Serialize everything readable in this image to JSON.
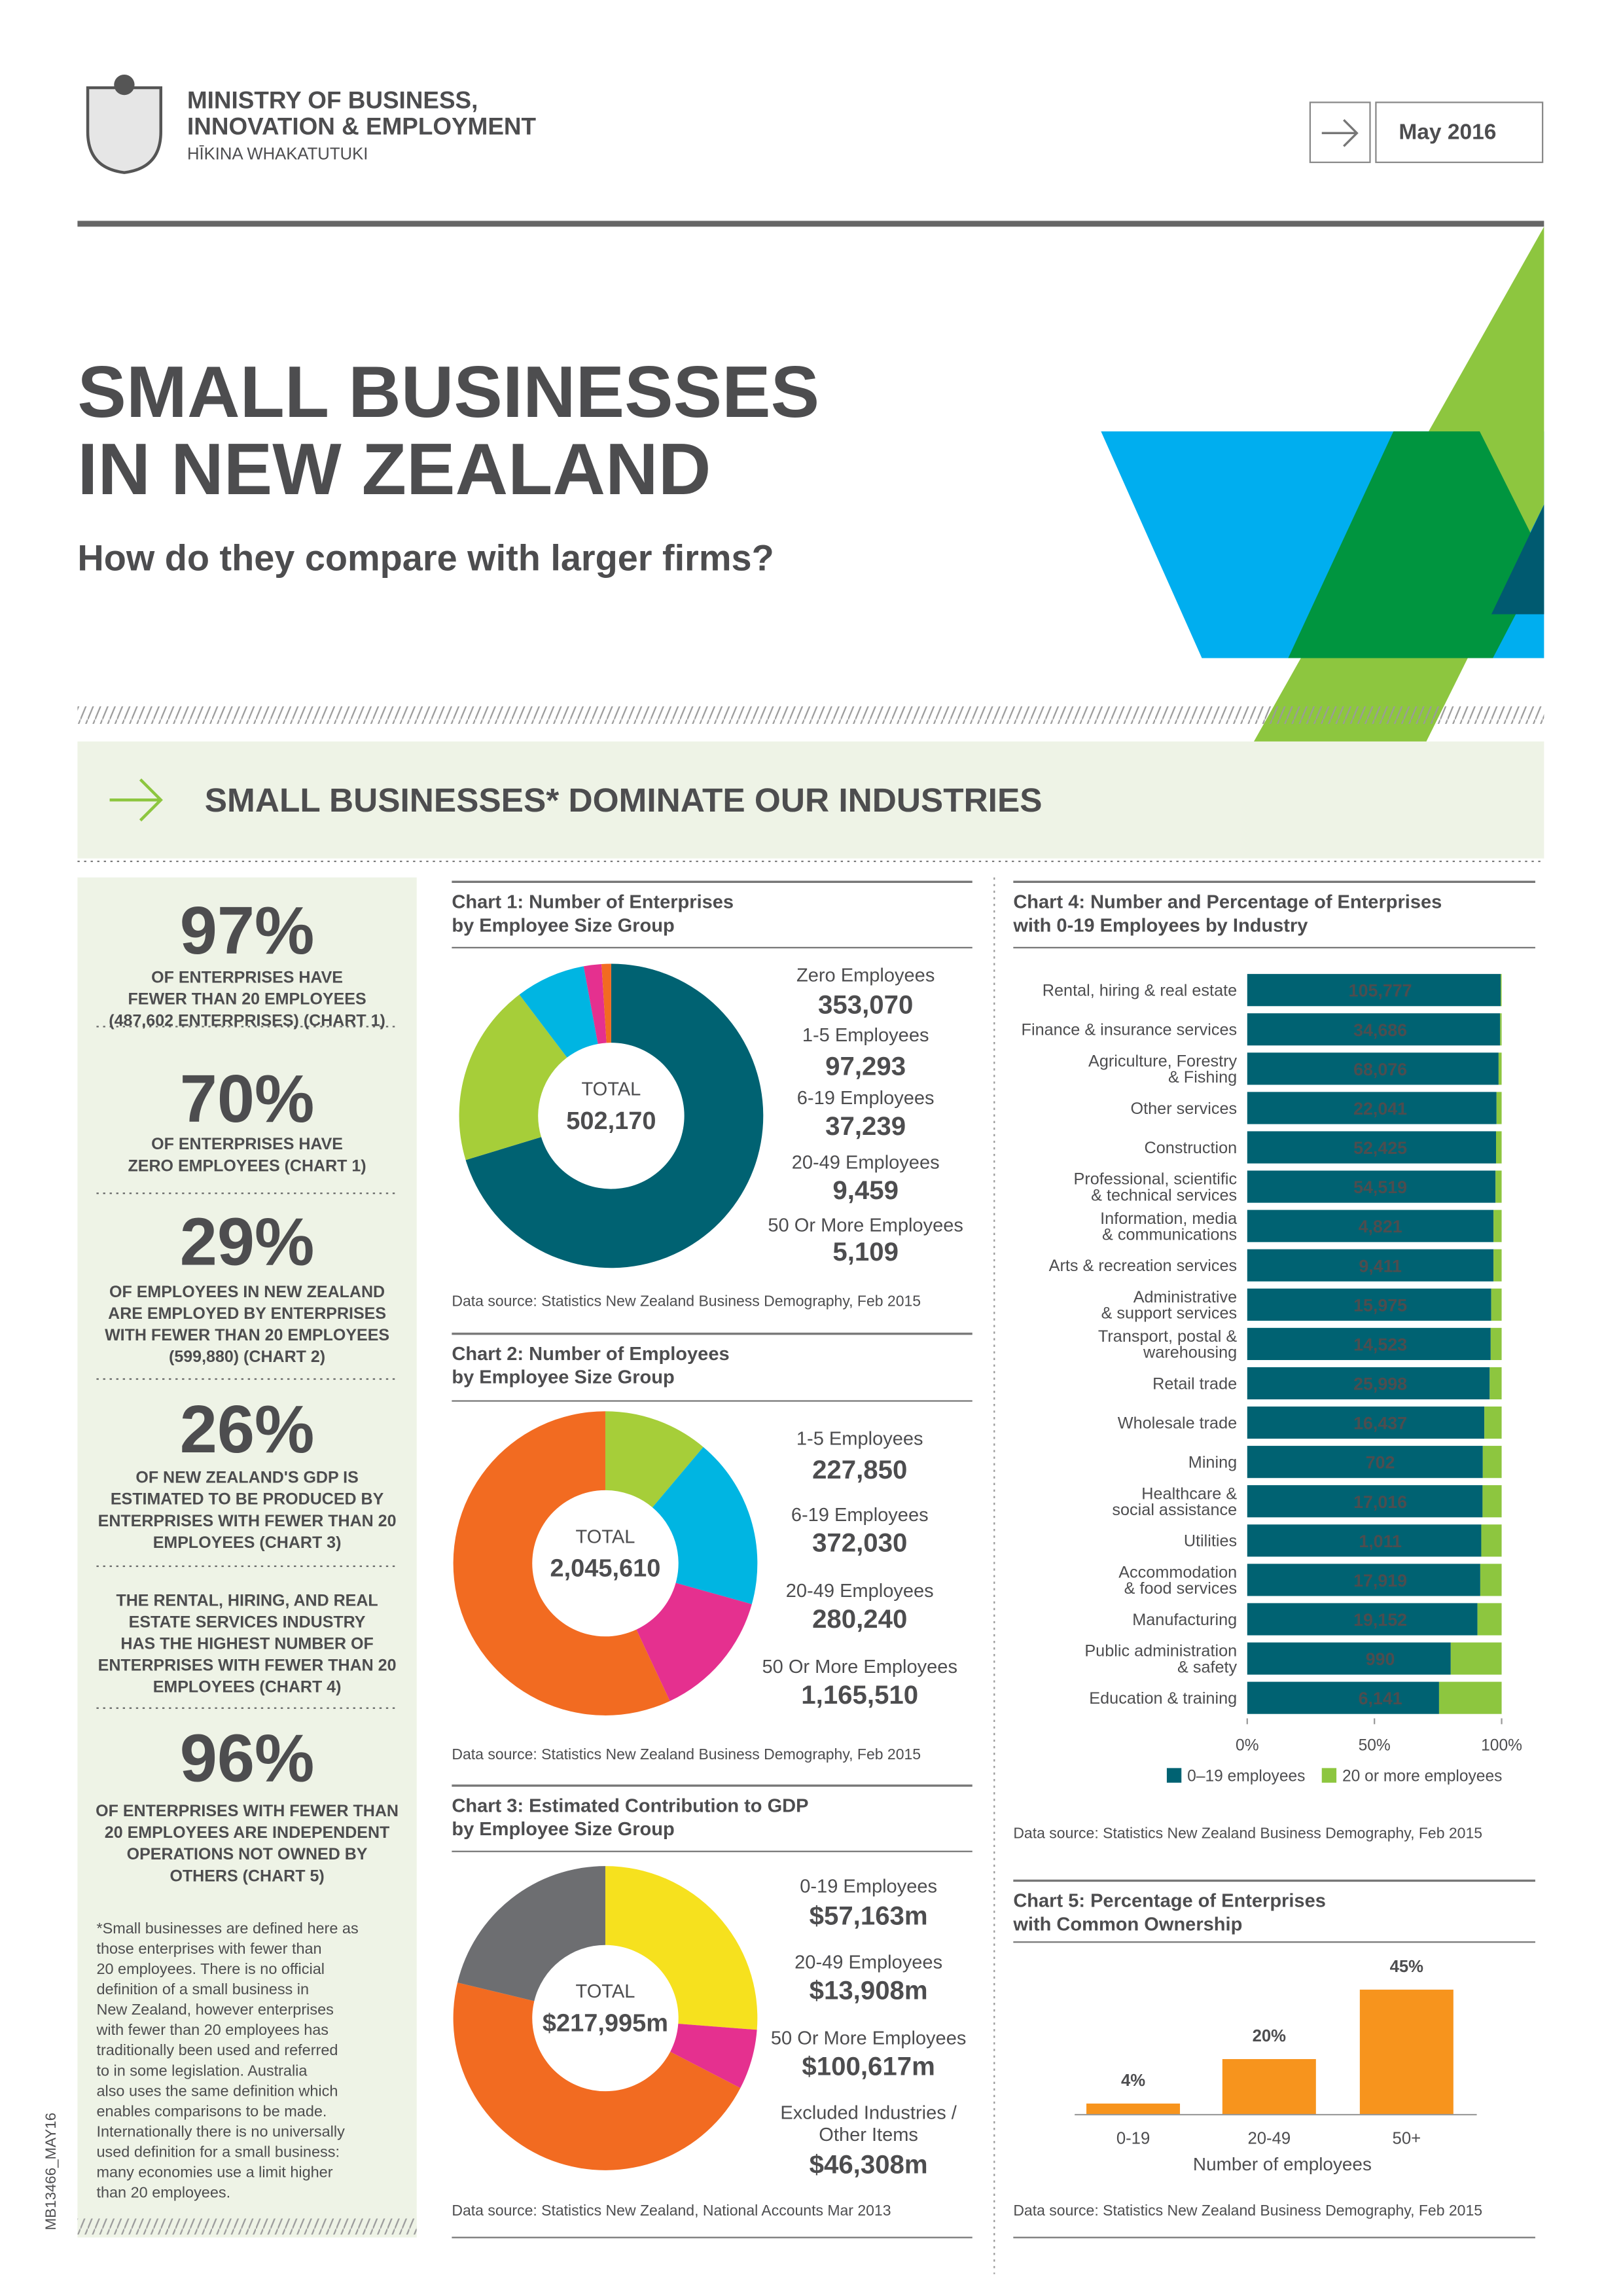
{
  "header": {
    "org_lines": "MINISTRY OF BUSINESS,\nINNOVATION & EMPLOYMENT",
    "org_maori": "HĪKINA WHAKATUTUKI",
    "date": "May 2016",
    "title_lines": "SMALL BUSINESSES\nIN NEW ZEALAND",
    "subtitle": "How do they compare with larger firms?"
  },
  "section_title": "SMALL BUSINESSES* DOMINATE OUR INDUSTRIES",
  "stats": [
    {
      "figure": "97%",
      "text": "OF ENTERPRISES HAVE\nFEWER THAN 20 EMPLOYEES\n(487,602 ENTERPRISES) (CHART 1)"
    },
    {
      "figure": "70%",
      "text": "OF ENTERPRISES HAVE\nZERO EMPLOYEES (CHART 1)"
    },
    {
      "figure": "29%",
      "text": "OF EMPLOYEES IN NEW ZEALAND\nARE EMPLOYED BY ENTERPRISES\nWITH FEWER THAN 20 EMPLOYEES\n(599,880) (CHART 2)"
    },
    {
      "figure": "26%",
      "text": "OF NEW ZEALAND'S GDP IS\nESTIMATED TO BE PRODUCED BY\nENTERPRISES WITH FEWER THAN 20\nEMPLOYEES (CHART 3)"
    },
    {
      "text": "THE RENTAL, HIRING, AND REAL\nESTATE SERVICES INDUSTRY\nHAS THE HIGHEST NUMBER OF\nENTERPRISES WITH FEWER THAN 20\nEMPLOYEES  (CHART 4)"
    },
    {
      "figure": "96%",
      "text": "OF ENTERPRISES WITH FEWER THAN\n20 EMPLOYEES ARE INDEPENDENT\nOPERATIONS NOT OWNED BY\nOTHERS (CHART 5)"
    }
  ],
  "footnote": "*Small businesses are defined here as\nthose enterprises with fewer than\n20 employees.  There is no official\ndefinition of a small business in\nNew Zealand, however enterprises\nwith fewer than 20 employees has\ntraditionally been used and referred\nto in some legislation.  Australia\nalso uses the same definition which\nenables comparisons to be made.\nInternationally there is no universally\nused definition for a small business:\nmany economies use a limit higher\nthan 20 employees.",
  "doc_code": "MB13466_MAY16",
  "chart_data": [
    {
      "type": "donut",
      "title": "Chart 1: Number of Enterprises\nby Employee Size Group",
      "categories": [
        "Zero Employees",
        "1-5 Employees",
        "6-19 Employees",
        "20-49 Employees",
        "50 Or More Employees"
      ],
      "values": [
        353070,
        97293,
        37239,
        9459,
        5109
      ],
      "value_labels": [
        "353,070",
        "97,293",
        "37,239",
        "9,459",
        "5,109"
      ],
      "colors": [
        "#006272",
        "#a6ce39",
        "#00b5e2",
        "#e5308f",
        "#f26b21"
      ],
      "center_label": "TOTAL",
      "total_label": "502,170",
      "source": "Data source: Statistics New Zealand Business Demography, Feb 2015"
    },
    {
      "type": "donut",
      "title": "Chart 2: Number of Employees\nby Employee Size Group",
      "categories": [
        "1-5 Employees",
        "6-19 Employees",
        "20-49 Employees",
        "50 Or More Employees"
      ],
      "values": [
        227850,
        372030,
        280240,
        1165510
      ],
      "value_labels": [
        "227,850",
        "372,030",
        "280,240",
        "1,165,510"
      ],
      "colors": [
        "#a6ce39",
        "#00b5e2",
        "#e5308f",
        "#f26b21"
      ],
      "center_label": "TOTAL",
      "total_label": "2,045,610",
      "source": "Data source: Statistics New Zealand Business Demography, Feb 2015"
    },
    {
      "type": "donut",
      "title": "Chart 3: Estimated Contribution to GDP\nby Employee Size Group",
      "categories": [
        "0-19 Employees",
        "20-49 Employees",
        "50 Or More Employees",
        "Excluded Industries /\nOther Items"
      ],
      "values": [
        57163,
        13908,
        100617,
        46308
      ],
      "value_labels": [
        "$57,163m",
        "$13,908m",
        "$100,617m",
        "$46,308m"
      ],
      "colors": [
        "#f6e11e",
        "#e5308f",
        "#f26b21",
        "#6d6e71"
      ],
      "center_label": "TOTAL",
      "total_label": "$217,995m",
      "source": "Data source: Statistics New Zealand, National Accounts Mar 2013"
    },
    {
      "type": "stacked_barh",
      "title": "Chart 4: Number and Percentage of Enterprises\nwith 0-19 Employees by Industry",
      "categories": [
        "Rental, hiring & real estate",
        "Finance & insurance services",
        "Agriculture, Forestry\n& Fishing",
        "Other services",
        "Construction",
        "Professional, scientific\n& technical services",
        "Information, media\n& communications",
        "Arts & recreation services",
        "Administrative\n& support  services",
        "Transport, postal &\nwarehousing",
        "Retail trade",
        "Wholesale trade",
        "Mining",
        "Healthcare &\nsocial assistance",
        "Utilities",
        "Accommodation\n& food services",
        "Manufacturing",
        "Public administration\n& safety",
        "Education & training"
      ],
      "series": [
        {
          "name": "0–19 employees",
          "color": "#006272",
          "values": [
            99.6,
            99.4,
            98.8,
            98.0,
            97.8,
            97.6,
            96.8,
            96.8,
            95.9,
            95.7,
            95.3,
            93.2,
            92.6,
            92.5,
            92.0,
            91.6,
            90.5,
            80.0,
            75.4
          ],
          "count_labels": [
            "105,777",
            "34,686",
            "68,076",
            "22,041",
            "52,425",
            "54,519",
            "4,821",
            "9,411",
            "15,975",
            "14,523",
            "25,998",
            "16,437",
            "702",
            "17,016",
            "1,011",
            "17,919",
            "19,152",
            "990",
            "6,141"
          ]
        },
        {
          "name": "20 or more employees",
          "color": "#8dc63f",
          "values": [
            0.4,
            0.6,
            1.2,
            2.0,
            2.2,
            2.4,
            3.2,
            3.2,
            4.1,
            4.3,
            4.7,
            6.8,
            7.4,
            7.5,
            8.0,
            8.4,
            9.5,
            20.0,
            24.6
          ]
        }
      ],
      "xlim": [
        0,
        100
      ],
      "xticks": [
        {
          "value": 0,
          "label": "0%"
        },
        {
          "value": 50,
          "label": "50%"
        },
        {
          "value": 100,
          "label": "100%"
        }
      ],
      "source": "Data source: Statistics New Zealand Business Demography, Feb 2015"
    },
    {
      "type": "bar",
      "title": "Chart 5: Percentage of Enterprises\nwith Common Ownership",
      "categories": [
        "0-19",
        "20-49",
        "50+"
      ],
      "values": [
        4,
        20,
        45
      ],
      "value_labels": [
        "4%",
        "20%",
        "45%"
      ],
      "color": "#f7941d",
      "ylim": [
        0,
        50
      ],
      "xlabel": "Number of employees",
      "source": "Data source: Statistics New Zealand Business Demography, Feb 2015"
    }
  ]
}
